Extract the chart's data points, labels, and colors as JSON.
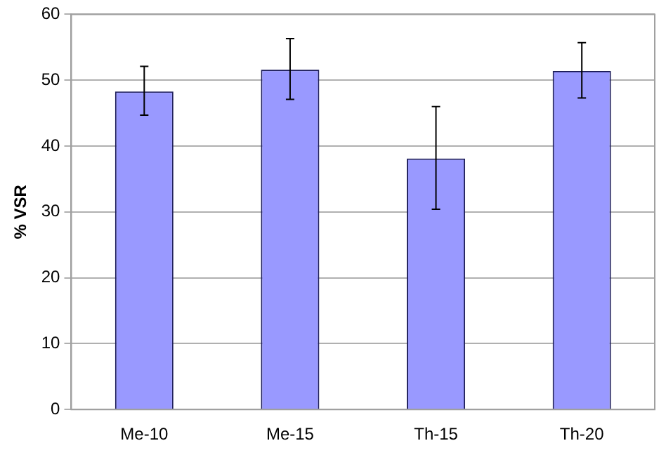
{
  "chart_data": {
    "type": "bar",
    "ylabel": "% VSR",
    "categories": [
      "Me-10",
      "Me-15",
      "Th-15",
      "Th-20"
    ],
    "values": [
      48.3,
      51.6,
      38.1,
      51.4
    ],
    "errors": [
      [
        44.7,
        52.1
      ],
      [
        47.1,
        56.3
      ],
      [
        30.4,
        46.0
      ],
      [
        47.3,
        55.7
      ]
    ],
    "color": "#9999ff",
    "ylim": [
      0,
      60
    ],
    "yticks": [
      0,
      10,
      20,
      30,
      40,
      50,
      60
    ],
    "grid": "y",
    "legend": false
  }
}
